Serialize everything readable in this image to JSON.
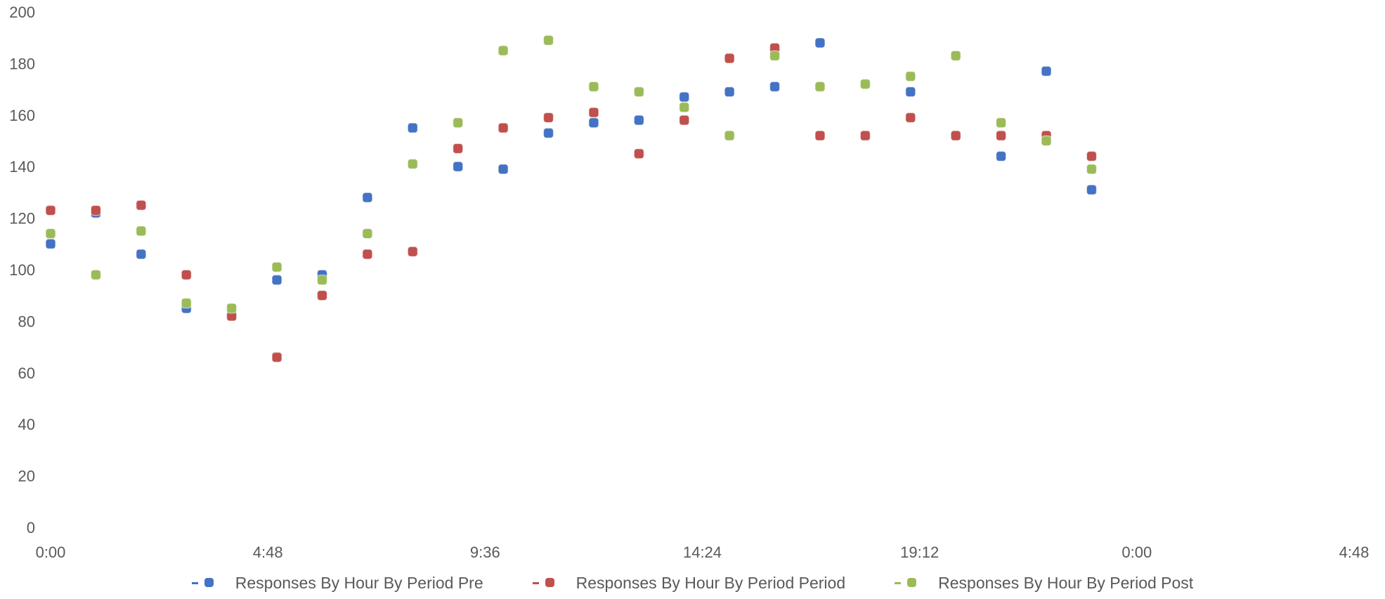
{
  "chart_data": {
    "type": "scatter",
    "title": "",
    "xlabel": "",
    "ylabel": "",
    "xlim": [
      "0:00",
      "28:48"
    ],
    "ylim": [
      0,
      200
    ],
    "x_ticks": [
      "0:00",
      "4:48",
      "9:36",
      "14:24",
      "19:12",
      "0:00",
      "4:48"
    ],
    "y_ticks": [
      "0",
      "20",
      "40",
      "60",
      "80",
      "100",
      "120",
      "140",
      "160",
      "180",
      "200"
    ],
    "grid": false,
    "legend_position": "bottom",
    "series": [
      {
        "name": "Responses By Hour By Period Pre",
        "color": "#4472C4",
        "x": [
          "0:00",
          "1:00",
          "2:00",
          "3:00",
          "4:00",
          "5:00",
          "6:00",
          "7:00",
          "8:00",
          "9:00",
          "10:00",
          "11:00",
          "12:00",
          "13:00",
          "14:00",
          "15:00",
          "16:00",
          "17:00",
          "18:00",
          "19:00",
          "20:00",
          "21:00",
          "22:00",
          "23:00"
        ],
        "y": [
          110,
          122,
          106,
          85,
          82,
          96,
          98,
          128,
          155,
          140,
          139,
          153,
          157,
          158,
          167,
          169,
          171,
          188,
          172,
          169,
          152,
          144,
          177,
          131
        ]
      },
      {
        "name": "Responses By Hour By Period Period",
        "color": "#C0504D",
        "x": [
          "0:00",
          "1:00",
          "2:00",
          "3:00",
          "4:00",
          "5:00",
          "6:00",
          "7:00",
          "8:00",
          "9:00",
          "10:00",
          "11:00",
          "12:00",
          "13:00",
          "14:00",
          "15:00",
          "16:00",
          "17:00",
          "18:00",
          "19:00",
          "20:00",
          "21:00",
          "22:00",
          "23:00"
        ],
        "y": [
          123,
          123,
          125,
          98,
          82,
          66,
          90,
          106,
          107,
          147,
          155,
          159,
          161,
          145,
          158,
          182,
          186,
          152,
          152,
          159,
          152,
          152,
          152,
          144
        ]
      },
      {
        "name": "Responses By Hour By Period Post",
        "color": "#9BBB59",
        "x": [
          "0:00",
          "1:00",
          "2:00",
          "3:00",
          "4:00",
          "5:00",
          "6:00",
          "7:00",
          "8:00",
          "9:00",
          "10:00",
          "11:00",
          "12:00",
          "13:00",
          "14:00",
          "15:00",
          "16:00",
          "17:00",
          "18:00",
          "19:00",
          "20:00",
          "21:00",
          "22:00",
          "23:00"
        ],
        "y": [
          114,
          98,
          115,
          87,
          85,
          101,
          96,
          114,
          141,
          157,
          185,
          189,
          171,
          169,
          163,
          152,
          183,
          171,
          172,
          175,
          183,
          157,
          150,
          139
        ]
      }
    ]
  }
}
